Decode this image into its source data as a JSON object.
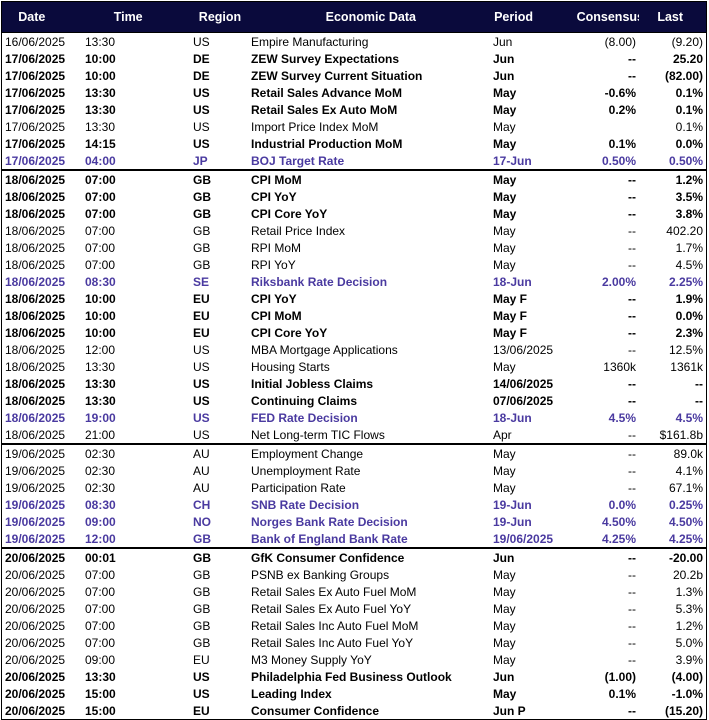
{
  "headers": {
    "date": "Date",
    "time": "Time",
    "region": "Region",
    "economic_data": "Economic Data",
    "period": "Period",
    "consensus": "Consensus",
    "last": "Last"
  },
  "colors": {
    "header_bg": "#0a0a3c",
    "header_text": "#ffffff",
    "rate_decision_text": "#4a3aa0"
  },
  "rows": [
    {
      "date": "16/06/2025",
      "time": "13:30",
      "region": "US",
      "data": "Empire Manufacturing",
      "period": "Jun",
      "consensus": "(8.00)",
      "last": "(9.20)",
      "style": "normal",
      "sep": false
    },
    {
      "date": "17/06/2025",
      "time": "10:00",
      "region": "DE",
      "data": "ZEW Survey Expectations",
      "period": "Jun",
      "consensus": "--",
      "last": "25.20",
      "style": "bold",
      "sep": false
    },
    {
      "date": "17/06/2025",
      "time": "10:00",
      "region": "DE",
      "data": "ZEW Survey Current Situation",
      "period": "Jun",
      "consensus": "--",
      "last": "(82.00)",
      "style": "bold",
      "sep": false
    },
    {
      "date": "17/06/2025",
      "time": "13:30",
      "region": "US",
      "data": "Retail Sales Advance MoM",
      "period": "May",
      "consensus": "-0.6%",
      "last": "0.1%",
      "style": "bold",
      "sep": false
    },
    {
      "date": "17/06/2025",
      "time": "13:30",
      "region": "US",
      "data": "Retail Sales Ex Auto MoM",
      "period": "May",
      "consensus": "0.2%",
      "last": "0.1%",
      "style": "bold",
      "sep": false
    },
    {
      "date": "17/06/2025",
      "time": "13:30",
      "region": "US",
      "data": "Import Price Index MoM",
      "period": "May",
      "consensus": "",
      "last": "0.1%",
      "style": "normal",
      "sep": false
    },
    {
      "date": "17/06/2025",
      "time": "14:15",
      "region": "US",
      "data": "Industrial Production MoM",
      "period": "May",
      "consensus": "0.1%",
      "last": "0.0%",
      "style": "bold",
      "sep": false
    },
    {
      "date": "17/06/2025",
      "time": "04:00",
      "region": "JP",
      "data": "BOJ Target Rate",
      "period": "17-Jun",
      "consensus": "0.50%",
      "last": "0.50%",
      "style": "rate",
      "sep": false
    },
    {
      "date": "18/06/2025",
      "time": "07:00",
      "region": "GB",
      "data": "CPI MoM",
      "period": "May",
      "consensus": "--",
      "last": "1.2%",
      "style": "bold",
      "sep": true
    },
    {
      "date": "18/06/2025",
      "time": "07:00",
      "region": "GB",
      "data": "CPI YoY",
      "period": "May",
      "consensus": "--",
      "last": "3.5%",
      "style": "bold",
      "sep": false
    },
    {
      "date": "18/06/2025",
      "time": "07:00",
      "region": "GB",
      "data": "CPI Core YoY",
      "period": "May",
      "consensus": "--",
      "last": "3.8%",
      "style": "bold",
      "sep": false
    },
    {
      "date": "18/06/2025",
      "time": "07:00",
      "region": "GB",
      "data": "Retail Price Index",
      "period": "May",
      "consensus": "--",
      "last": "402.20",
      "style": "normal",
      "sep": false
    },
    {
      "date": "18/06/2025",
      "time": "07:00",
      "region": "GB",
      "data": "RPI MoM",
      "period": "May",
      "consensus": "--",
      "last": "1.7%",
      "style": "normal",
      "sep": false
    },
    {
      "date": "18/06/2025",
      "time": "07:00",
      "region": "GB",
      "data": "RPI YoY",
      "period": "May",
      "consensus": "--",
      "last": "4.5%",
      "style": "normal",
      "sep": false
    },
    {
      "date": "18/06/2025",
      "time": "08:30",
      "region": "SE",
      "data": "Riksbank Rate Decision",
      "period": "18-Jun",
      "consensus": "2.00%",
      "last": "2.25%",
      "style": "rate",
      "sep": false
    },
    {
      "date": "18/06/2025",
      "time": "10:00",
      "region": "EU",
      "data": "CPI YoY",
      "period": "May F",
      "consensus": "--",
      "last": "1.9%",
      "style": "bold",
      "sep": false
    },
    {
      "date": "18/06/2025",
      "time": "10:00",
      "region": "EU",
      "data": "CPI MoM",
      "period": "May F",
      "consensus": "--",
      "last": "0.0%",
      "style": "bold",
      "sep": false
    },
    {
      "date": "18/06/2025",
      "time": "10:00",
      "region": "EU",
      "data": "CPI Core YoY",
      "period": "May F",
      "consensus": "--",
      "last": "2.3%",
      "style": "bold",
      "sep": false
    },
    {
      "date": "18/06/2025",
      "time": "12:00",
      "region": "US",
      "data": "MBA Mortgage Applications",
      "period": "13/06/2025",
      "consensus": "--",
      "last": "12.5%",
      "style": "normal",
      "sep": false
    },
    {
      "date": "18/06/2025",
      "time": "13:30",
      "region": "US",
      "data": "Housing Starts",
      "period": "May",
      "consensus": "1360k",
      "last": "1361k",
      "style": "normal",
      "sep": false
    },
    {
      "date": "18/06/2025",
      "time": "13:30",
      "region": "US",
      "data": "Initial Jobless Claims",
      "period": "14/06/2025",
      "consensus": "--",
      "last": "--",
      "style": "bold",
      "sep": false
    },
    {
      "date": "18/06/2025",
      "time": "13:30",
      "region": "US",
      "data": "Continuing Claims",
      "period": "07/06/2025",
      "consensus": "--",
      "last": "--",
      "style": "bold",
      "sep": false
    },
    {
      "date": "18/06/2025",
      "time": "19:00",
      "region": "US",
      "data": "FED Rate Decision",
      "period": "18-Jun",
      "consensus": "4.5%",
      "last": "4.5%",
      "style": "rate",
      "sep": false
    },
    {
      "date": "18/06/2025",
      "time": "21:00",
      "region": "US",
      "data": "Net Long-term TIC Flows",
      "period": "Apr",
      "consensus": "--",
      "last": "$161.8b",
      "style": "normal",
      "sep": false
    },
    {
      "date": "19/06/2025",
      "time": "02:30",
      "region": "AU",
      "data": "Employment Change",
      "period": "May",
      "consensus": "--",
      "last": "89.0k",
      "style": "normal",
      "sep": true
    },
    {
      "date": "19/06/2025",
      "time": "02:30",
      "region": "AU",
      "data": "Unemployment Rate",
      "period": "May",
      "consensus": "--",
      "last": "4.1%",
      "style": "normal",
      "sep": false
    },
    {
      "date": "19/06/2025",
      "time": "02:30",
      "region": "AU",
      "data": "Participation Rate",
      "period": "May",
      "consensus": "--",
      "last": "67.1%",
      "style": "normal",
      "sep": false
    },
    {
      "date": "19/06/2025",
      "time": "08:30",
      "region": "CH",
      "data": "SNB Rate Decision",
      "period": "19-Jun",
      "consensus": "0.0%",
      "last": "0.25%",
      "style": "rate",
      "sep": false
    },
    {
      "date": "19/06/2025",
      "time": "09:00",
      "region": "NO",
      "data": "Norges Bank Rate Decision",
      "period": "19-Jun",
      "consensus": "4.50%",
      "last": "4.50%",
      "style": "rate",
      "sep": false
    },
    {
      "date": "19/06/2025",
      "time": "12:00",
      "region": "GB",
      "data": "Bank of England Bank Rate",
      "period": "19/06/2025",
      "consensus": "4.25%",
      "last": "4.25%",
      "style": "rate",
      "sep": false
    },
    {
      "date": "20/06/2025",
      "time": "00:01",
      "region": "GB",
      "data": "GfK Consumer Confidence",
      "period": "Jun",
      "consensus": "--",
      "last": "-20.00",
      "style": "bold",
      "sep": true
    },
    {
      "date": "20/06/2025",
      "time": "07:00",
      "region": "GB",
      "data": "PSNB ex Banking Groups",
      "period": "May",
      "consensus": "--",
      "last": "20.2b",
      "style": "normal",
      "sep": false
    },
    {
      "date": "20/06/2025",
      "time": "07:00",
      "region": "GB",
      "data": "Retail Sales Ex Auto Fuel MoM",
      "period": "May",
      "consensus": "--",
      "last": "1.3%",
      "style": "normal",
      "sep": false
    },
    {
      "date": "20/06/2025",
      "time": "07:00",
      "region": "GB",
      "data": "Retail Sales Ex Auto Fuel YoY",
      "period": "May",
      "consensus": "--",
      "last": "5.3%",
      "style": "normal",
      "sep": false
    },
    {
      "date": "20/06/2025",
      "time": "07:00",
      "region": "GB",
      "data": "Retail Sales Inc Auto Fuel MoM",
      "period": "May",
      "consensus": "--",
      "last": "1.2%",
      "style": "normal",
      "sep": false
    },
    {
      "date": "20/06/2025",
      "time": "07:00",
      "region": "GB",
      "data": "Retail Sales Inc Auto Fuel YoY",
      "period": "May",
      "consensus": "--",
      "last": "5.0%",
      "style": "normal",
      "sep": false
    },
    {
      "date": "20/06/2025",
      "time": "09:00",
      "region": "EU",
      "data": "M3 Money Supply YoY",
      "period": "May",
      "consensus": "--",
      "last": "3.9%",
      "style": "normal",
      "sep": false
    },
    {
      "date": "20/06/2025",
      "time": "13:30",
      "region": "US",
      "data": "Philadelphia Fed Business Outlook",
      "period": "Jun",
      "consensus": "(1.00)",
      "last": "(4.00)",
      "style": "bold",
      "sep": false
    },
    {
      "date": "20/06/2025",
      "time": "15:00",
      "region": "US",
      "data": "Leading Index",
      "period": "May",
      "consensus": "0.1%",
      "last": "-1.0%",
      "style": "bold",
      "sep": false
    },
    {
      "date": "20/06/2025",
      "time": "15:00",
      "region": "EU",
      "data": "Consumer Confidence",
      "period": "Jun P",
      "consensus": "--",
      "last": "(15.20)",
      "style": "bold",
      "sep": false
    }
  ]
}
